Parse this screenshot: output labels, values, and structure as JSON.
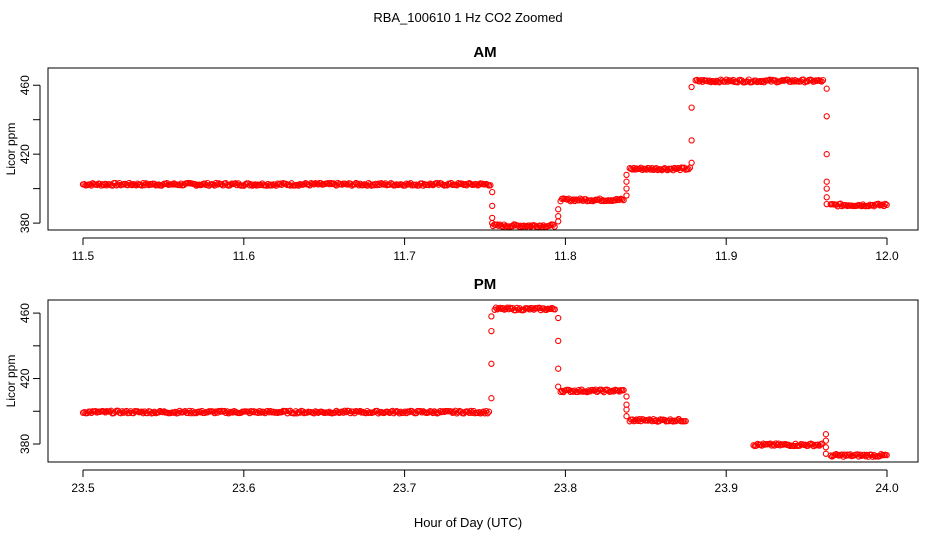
{
  "figure": {
    "title": "RBA_100610  1 Hz CO2 Zoomed",
    "xlabel": "Hour of Day (UTC)"
  },
  "colors": {
    "points": "#ff0000",
    "axis": "#000000",
    "background": "#ffffff"
  },
  "chart_data": [
    {
      "type": "scatter",
      "title": "AM",
      "ylabel": "Licor ppm",
      "xlim": [
        11.5,
        12.0
      ],
      "ylim": [
        376,
        470
      ],
      "xticks": [
        "11.5",
        "11.6",
        "11.7",
        "11.8",
        "11.9",
        "12.0"
      ],
      "yticks": [
        "380",
        "420",
        "460"
      ],
      "grid": false,
      "segments": [
        {
          "x": [
            11.5,
            11.754
          ],
          "y": 402.5
        },
        {
          "x": [
            11.755,
            11.794
          ],
          "y": 378.5
        },
        {
          "x": [
            11.797,
            11.837
          ],
          "y": 393.5
        },
        {
          "x": [
            11.84,
            11.878
          ],
          "y": 411.5
        },
        {
          "x": [
            11.881,
            11.961
          ],
          "y": 462.5
        },
        {
          "x": [
            11.965,
            12.0
          ],
          "y": 390.5
        }
      ],
      "transitions": [
        {
          "x": 11.7545,
          "y": [
            398,
            390,
            383,
            380
          ]
        },
        {
          "x": 11.7955,
          "y": [
            381,
            384,
            388
          ]
        },
        {
          "x": 11.838,
          "y": [
            396,
            400,
            404,
            408
          ]
        },
        {
          "x": 11.8785,
          "y": [
            415,
            428,
            447,
            459
          ]
        },
        {
          "x": 11.9625,
          "y": [
            458,
            442,
            420,
            404,
            400,
            395,
            391
          ]
        }
      ]
    },
    {
      "type": "scatter",
      "title": "PM",
      "ylabel": "Licor ppm",
      "xlim": [
        23.5,
        24.0
      ],
      "ylim": [
        369,
        468
      ],
      "xticks": [
        "23.5",
        "23.6",
        "23.7",
        "23.8",
        "23.9",
        "24.0"
      ],
      "yticks": [
        "380",
        "420",
        "460"
      ],
      "grid": false,
      "segments": [
        {
          "x": [
            23.5,
            23.753
          ],
          "y": 399.5
        },
        {
          "x": [
            23.756,
            23.794
          ],
          "y": 462.5
        },
        {
          "x": [
            23.797,
            23.837
          ],
          "y": 412.5
        },
        {
          "x": [
            23.84,
            23.875
          ],
          "y": 394.5
        },
        {
          "x": [
            23.917,
            23.96
          ],
          "y": 379.5
        },
        {
          "x": [
            23.965,
            24.0
          ],
          "y": 373.0
        }
      ],
      "transitions": [
        {
          "x": 23.754,
          "y": [
            408,
            429,
            449,
            458
          ]
        },
        {
          "x": 23.7955,
          "y": [
            457,
            443,
            426,
            415
          ]
        },
        {
          "x": 23.838,
          "y": [
            409,
            404,
            401,
            397
          ]
        },
        {
          "x": 23.962,
          "y": [
            386,
            382,
            378,
            374
          ]
        }
      ]
    }
  ]
}
